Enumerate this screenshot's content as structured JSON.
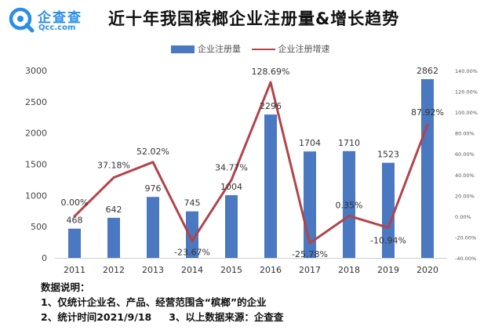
{
  "brand": {
    "name": "企查查",
    "url": "Qcc.com",
    "logo_color": "#2a8ee8"
  },
  "colors": {
    "bar": "#4a78c1",
    "line": "#b2444a"
  },
  "chart_data": {
    "type": "bar",
    "title": "近十年我国槟榔企业注册量&增长趋势",
    "categories": [
      "2011",
      "2012",
      "2013",
      "2014",
      "2015",
      "2016",
      "2017",
      "2018",
      "2019",
      "2020"
    ],
    "series": [
      {
        "name": "企业注册量",
        "type": "bar",
        "axis": "left",
        "values": [
          468,
          642,
          976,
          745,
          1004,
          2296,
          1704,
          1710,
          1523,
          2862
        ],
        "labels": [
          "468",
          "642",
          "976",
          "745",
          "1004",
          "2296",
          "1704",
          "1710",
          "1523",
          "2862"
        ]
      },
      {
        "name": "企业注册增速",
        "type": "line",
        "axis": "right",
        "values": [
          0.0,
          37.18,
          52.02,
          -23.67,
          34.77,
          128.69,
          -25.78,
          0.35,
          -10.94,
          87.92
        ],
        "labels": [
          "0.00%",
          "37.18%",
          "52.02%",
          "-23.67%",
          "34.77%",
          "128.69%",
          "-25.78%",
          "0.35%",
          "-10.94%",
          "87.92%"
        ]
      }
    ],
    "y_left": {
      "min": 0,
      "max": 3000,
      "ticks": [
        "0",
        "500",
        "1000",
        "1500",
        "2000",
        "2500",
        "3000"
      ]
    },
    "y_right": {
      "min": -40,
      "max": 140,
      "ticks": [
        "-40.00%",
        "-20.00%",
        "0.00%",
        "20.00%",
        "40.00%",
        "60.00%",
        "80.00%",
        "100.00%",
        "120.00%",
        "140.00%"
      ]
    },
    "grid": false,
    "legend_position": "top"
  },
  "notes": {
    "heading": "数据说明：",
    "line1": "1、仅统计企业名、产品、经营范围含“槟榔”的企业",
    "line2a": "2、统计时间2021/9/18",
    "line2b": "3、以上数据来源：企查查"
  }
}
